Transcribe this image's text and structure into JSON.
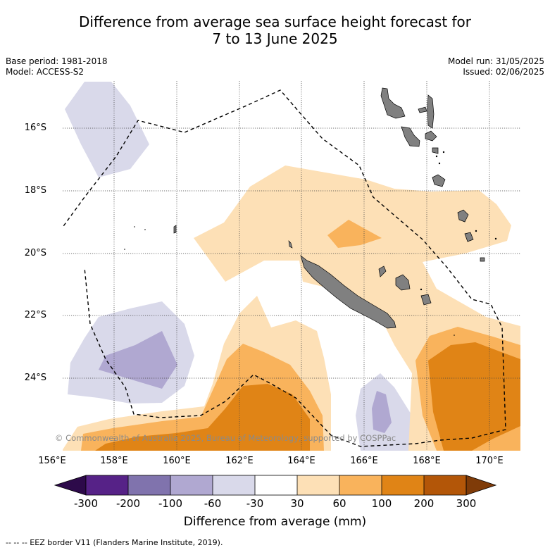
{
  "title_line1": "Difference from average sea surface height forecast for",
  "title_line2": "7 to 13 June 2025",
  "meta": {
    "base_period": "Base period: 1981-2018",
    "model": "Model: ACCESS-S2",
    "model_run": "Model run: 31/05/2025",
    "issued": "Issued: 02/06/2025"
  },
  "latitude_labels": [
    "16°S",
    "18°S",
    "20°S",
    "22°S",
    "24°S"
  ],
  "longitude_labels": [
    "156°E",
    "158°E",
    "160°E",
    "162°E",
    "164°E",
    "166°E",
    "168°E",
    "170°E"
  ],
  "copyright": "© Commonwealth of Australia 2025, Bureau of Meteorology, supported by COSPPac",
  "colorbar": {
    "ticks": [
      "-300",
      "-200",
      "-100",
      "-60",
      "-30",
      "30",
      "60",
      "100",
      "200",
      "300"
    ],
    "title": "Difference from average (mm)",
    "colors": {
      "below_-300": "#2d0a4a",
      "-300_-200": "#562287",
      "-200_-100": "#8073ad",
      "-100_-60": "#b0a8d1",
      "-60_-30": "#d9d9ea",
      "-30_30": "#ffffff",
      "30_60": "#fde0b6",
      "60_100": "#f9b35c",
      "100_200": "#e08416",
      "200_300": "#b35608",
      "above_300": "#7f3b08"
    }
  },
  "land_color": "#808080",
  "footnote": "--  --  -- EEZ border V11 (Flanders Marine Institute, 2019)."
}
